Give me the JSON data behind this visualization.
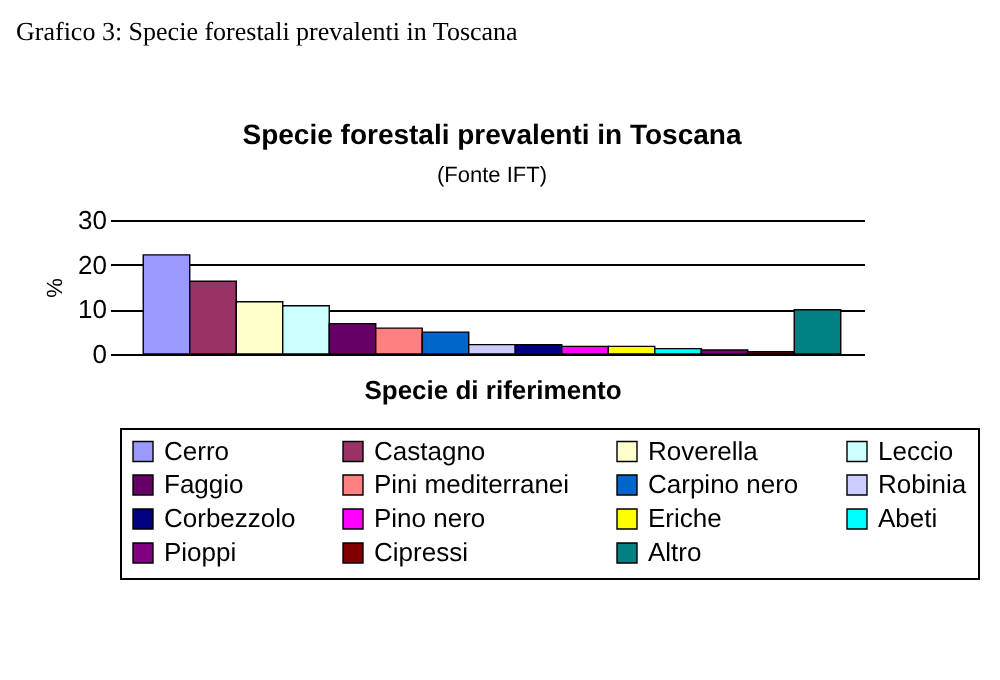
{
  "chart_data": {
    "type": "bar",
    "title": "Specie forestali prevalenti in Toscana",
    "subtitle": "(Fonte IFT)",
    "xlabel": "Specie di riferimento",
    "ylabel": "%",
    "annotations": [
      "Grafico 3: Specie forestali prevalenti in Toscana"
    ],
    "categories": [
      null,
      null,
      null,
      null,
      null,
      null,
      null,
      null,
      null,
      null,
      null,
      null,
      null,
      null,
      null
    ],
    "series": [
      {
        "name": "Cerro",
        "color": "#9999ff",
        "values": [
          22.2,
          null,
          null,
          null,
          null,
          null,
          null,
          null,
          null,
          null,
          null,
          null,
          null,
          null,
          null
        ]
      },
      {
        "name": "Castagno",
        "color": "#993366",
        "values": [
          null,
          16.3,
          null,
          null,
          null,
          null,
          null,
          null,
          null,
          null,
          null,
          null,
          null,
          null,
          null
        ]
      },
      {
        "name": "Roverella",
        "color": "#ffffcc",
        "values": [
          null,
          null,
          11.7,
          null,
          null,
          null,
          null,
          null,
          null,
          null,
          null,
          null,
          null,
          null,
          null
        ]
      },
      {
        "name": "Leccio",
        "color": "#ccffff",
        "values": [
          null,
          null,
          null,
          10.8,
          null,
          null,
          null,
          null,
          null,
          null,
          null,
          null,
          null,
          null,
          null
        ]
      },
      {
        "name": "Faggio",
        "color": "#660066",
        "values": [
          null,
          null,
          null,
          null,
          6.8,
          null,
          null,
          null,
          null,
          null,
          null,
          null,
          null,
          null,
          null
        ]
      },
      {
        "name": "Pini mediterranei",
        "color": "#ff8080",
        "values": [
          null,
          null,
          null,
          null,
          null,
          5.8,
          null,
          null,
          null,
          null,
          null,
          null,
          null,
          null,
          null
        ]
      },
      {
        "name": "Carpino nero",
        "color": "#0066cc",
        "values": [
          null,
          null,
          null,
          null,
          null,
          null,
          4.9,
          null,
          null,
          null,
          null,
          null,
          null,
          null,
          null
        ]
      },
      {
        "name": "Robinia",
        "color": "#ccccff",
        "values": [
          null,
          null,
          null,
          null,
          null,
          null,
          null,
          2.1,
          null,
          null,
          null,
          null,
          null,
          null,
          null
        ]
      },
      {
        "name": "Corbezzolo",
        "color": "#000080",
        "values": [
          null,
          null,
          null,
          null,
          null,
          null,
          null,
          null,
          2.1,
          null,
          null,
          null,
          null,
          null,
          null
        ]
      },
      {
        "name": "Pino nero",
        "color": "#ff00ff",
        "values": [
          null,
          null,
          null,
          null,
          null,
          null,
          null,
          null,
          null,
          1.7,
          null,
          null,
          null,
          null,
          null
        ]
      },
      {
        "name": "Eriche",
        "color": "#ffff00",
        "values": [
          null,
          null,
          null,
          null,
          null,
          null,
          null,
          null,
          null,
          null,
          1.7,
          null,
          null,
          null,
          null
        ]
      },
      {
        "name": "Abeti",
        "color": "#00ffff",
        "values": [
          null,
          null,
          null,
          null,
          null,
          null,
          null,
          null,
          null,
          null,
          null,
          1.2,
          null,
          null,
          null
        ]
      },
      {
        "name": "Pioppi",
        "color": "#800080",
        "values": [
          null,
          null,
          null,
          null,
          null,
          null,
          null,
          null,
          null,
          null,
          null,
          null,
          0.9,
          null,
          null
        ]
      },
      {
        "name": "Cipressi",
        "color": "#800000",
        "values": [
          null,
          null,
          null,
          null,
          null,
          null,
          null,
          null,
          null,
          null,
          null,
          null,
          null,
          0.5,
          null
        ]
      },
      {
        "name": "Altro",
        "color": "#008080",
        "values": [
          null,
          null,
          null,
          null,
          null,
          null,
          null,
          null,
          null,
          null,
          null,
          null,
          null,
          null,
          9.9
        ]
      }
    ],
    "ylim": [
      0,
      30
    ],
    "yticks": [
      0,
      10,
      20,
      30
    ],
    "grid": "y",
    "legend": "bottom",
    "tick_labels": "y"
  }
}
